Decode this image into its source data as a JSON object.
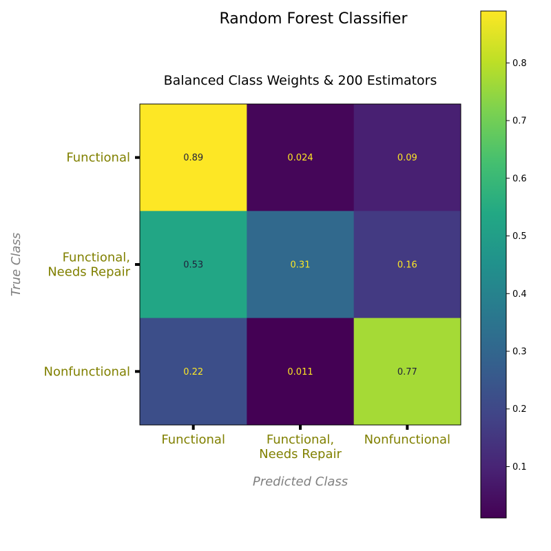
{
  "chart_data": {
    "type": "heatmap",
    "suptitle": "Random Forest Classifier",
    "title": "Balanced Class Weights & 200 Estimators",
    "xlabel": "Predicted Class",
    "ylabel": "True Class",
    "row_labels": [
      [
        "Functional"
      ],
      [
        "Functional,",
        "Needs Repair"
      ],
      [
        "Nonfunctional"
      ]
    ],
    "col_labels": [
      [
        "Functional"
      ],
      [
        "Functional,",
        "Needs Repair"
      ],
      [
        "Nonfunctional"
      ]
    ],
    "values": [
      [
        0.89,
        0.024,
        0.09
      ],
      [
        0.53,
        0.31,
        0.16
      ],
      [
        0.22,
        0.011,
        0.77
      ]
    ],
    "value_labels": [
      [
        "0.89",
        "0.024",
        "0.09"
      ],
      [
        "0.53",
        "0.31",
        "0.16"
      ],
      [
        "0.22",
        "0.011",
        "0.77"
      ]
    ],
    "colormap": "viridis",
    "colorbar": {
      "range": [
        0.011,
        0.89
      ],
      "ticks": [
        0.1,
        0.2,
        0.3,
        0.4,
        0.5,
        0.6,
        0.7,
        0.8
      ],
      "tick_labels": [
        "0.1",
        "0.2",
        "0.3",
        "0.4",
        "0.5",
        "0.6",
        "0.7",
        "0.8"
      ]
    },
    "label_colors": {
      "light": "#fde725",
      "dark": "#1f1f3a"
    }
  }
}
